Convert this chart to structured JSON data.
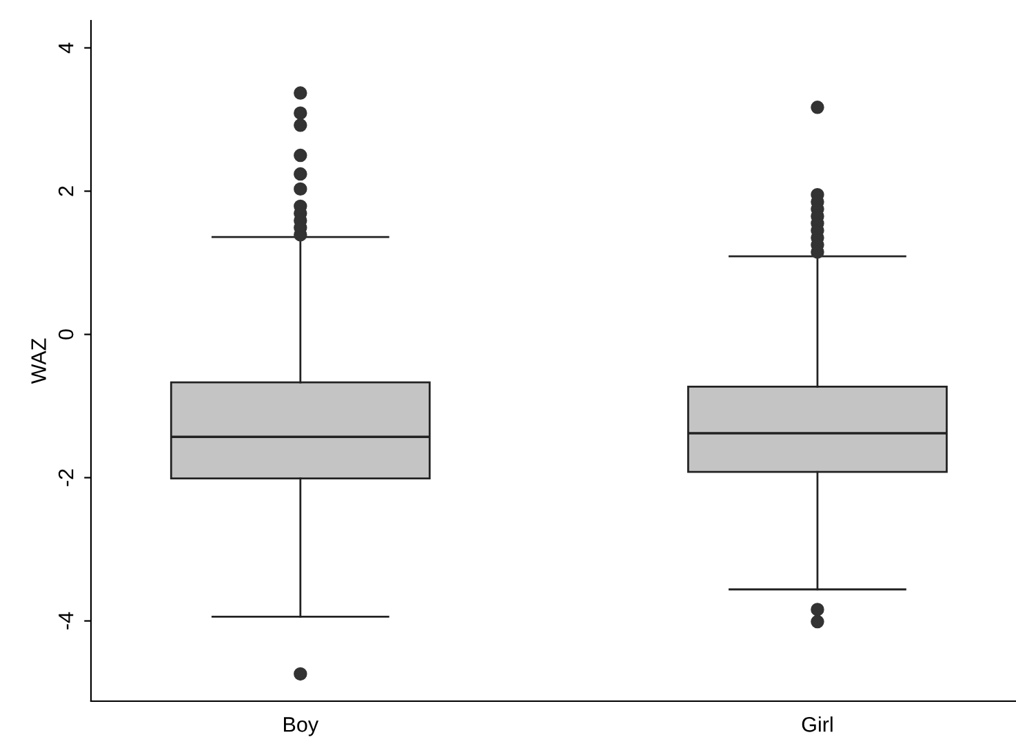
{
  "chart_data": {
    "type": "box",
    "ylabel": "WAZ",
    "categories": [
      "Boy",
      "Girl"
    ],
    "ylim": [
      -5.12,
      4.38
    ],
    "yticks": [
      -4,
      -2,
      0,
      2,
      4
    ],
    "grid": false,
    "color": "#c4c4c4",
    "boxes": [
      {
        "low": -3.94,
        "q1": -2.01,
        "median": -1.43,
        "q3": -0.67,
        "high": 1.36,
        "outliers": [
          3.37,
          3.09,
          2.92,
          2.5,
          2.24,
          2.03,
          1.79,
          1.69,
          1.59,
          1.49,
          1.39,
          -4.74
        ]
      },
      {
        "low": -3.56,
        "q1": -1.92,
        "median": -1.38,
        "q3": -0.73,
        "high": 1.09,
        "outliers": [
          3.17,
          1.95,
          1.85,
          1.75,
          1.65,
          1.55,
          1.45,
          1.35,
          1.25,
          1.15,
          -3.84,
          -4.01
        ]
      }
    ]
  }
}
